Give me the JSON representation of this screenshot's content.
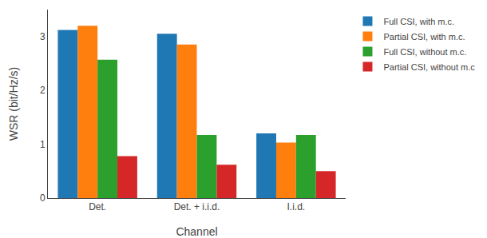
{
  "chart_data": {
    "type": "bar",
    "categories": [
      "Det.",
      "Det. + i.i.d.",
      "I.i.d."
    ],
    "series": [
      {
        "name": "Full CSI, with m.c.",
        "color": "#1f77b4",
        "values": [
          3.12,
          3.05,
          1.2
        ]
      },
      {
        "name": "Partial CSI, with m.c.",
        "color": "#ff7f0e",
        "values": [
          3.2,
          2.85,
          1.03
        ]
      },
      {
        "name": "Full CSI, without m.c.",
        "color": "#2ca02c",
        "values": [
          2.57,
          1.17,
          1.17
        ]
      },
      {
        "name": "Partial CSI, without m.c",
        "color": "#d62728",
        "values": [
          0.78,
          0.62,
          0.5
        ]
      }
    ],
    "xlabel": "Channel",
    "ylabel": "WSR (bit/Hz/s)",
    "ylim": [
      0,
      3.5
    ],
    "yticks": [
      0,
      1,
      2,
      3
    ],
    "grid": false,
    "legend": "upper right"
  }
}
